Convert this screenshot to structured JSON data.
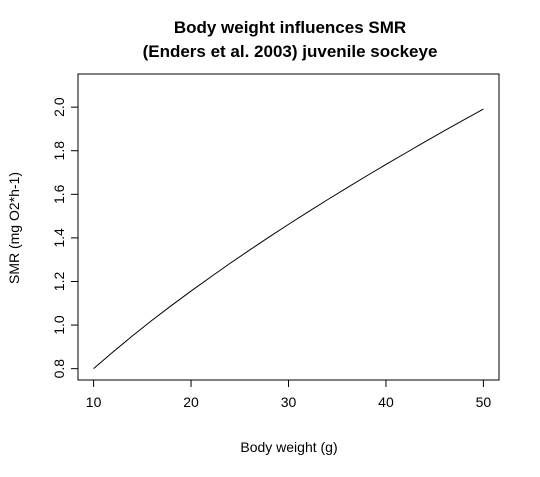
{
  "chart_data": {
    "type": "line",
    "title": "Body weight influences SMR",
    "subtitle": "(Enders et al. 2003) juvenile sockeye",
    "xlabel": "Body weight (g)",
    "ylabel": "SMR (mg O2*h-1)",
    "xlim": [
      8.4,
      51.6
    ],
    "ylim": [
      0.748,
      2.152
    ],
    "xticks": [
      10,
      20,
      30,
      40,
      50
    ],
    "yticks": [
      0.8,
      1.0,
      1.2,
      1.4,
      1.6,
      1.8,
      2.0
    ],
    "grid": false,
    "legend": "none",
    "line_color": "#000000",
    "x": [
      10,
      12,
      14,
      16,
      18,
      20,
      22,
      24,
      26,
      28,
      30,
      32,
      34,
      36,
      38,
      40,
      42,
      44,
      46,
      48,
      50
    ],
    "y": [
      0.8,
      0.877,
      0.951,
      1.022,
      1.09,
      1.156,
      1.22,
      1.283,
      1.344,
      1.404,
      1.462,
      1.519,
      1.575,
      1.63,
      1.684,
      1.737,
      1.789,
      1.841,
      1.892,
      1.942,
      1.991
    ]
  }
}
